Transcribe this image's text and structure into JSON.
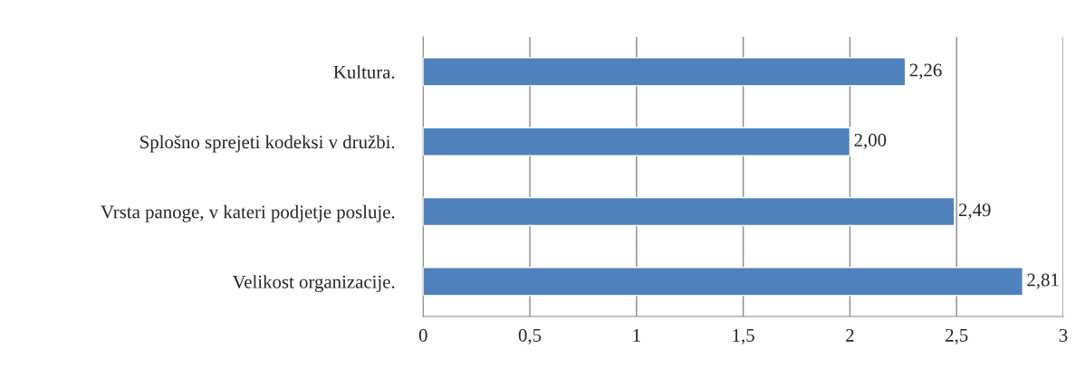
{
  "chart_data": {
    "type": "bar",
    "orientation": "horizontal",
    "categories": [
      "Kultura.",
      "Splošno sprejeti kodeksi v družbi.",
      "Vrsta panoge, v kateri podjetje posluje.",
      "Velikost organizacije."
    ],
    "values": [
      2.26,
      2.0,
      2.49,
      2.81
    ],
    "value_labels": [
      "2,26",
      "2,00",
      "2,49",
      "2,81"
    ],
    "color": "#4f81bd",
    "xlim": [
      0,
      3
    ],
    "xticks": [
      0,
      {
        "value": 0.5,
        "label": "0,5"
      },
      1,
      {
        "value": 1.5,
        "label": "1,5"
      },
      2,
      {
        "value": 2.5,
        "label": "2,5"
      },
      3
    ],
    "grid": "x",
    "legend": false
  }
}
